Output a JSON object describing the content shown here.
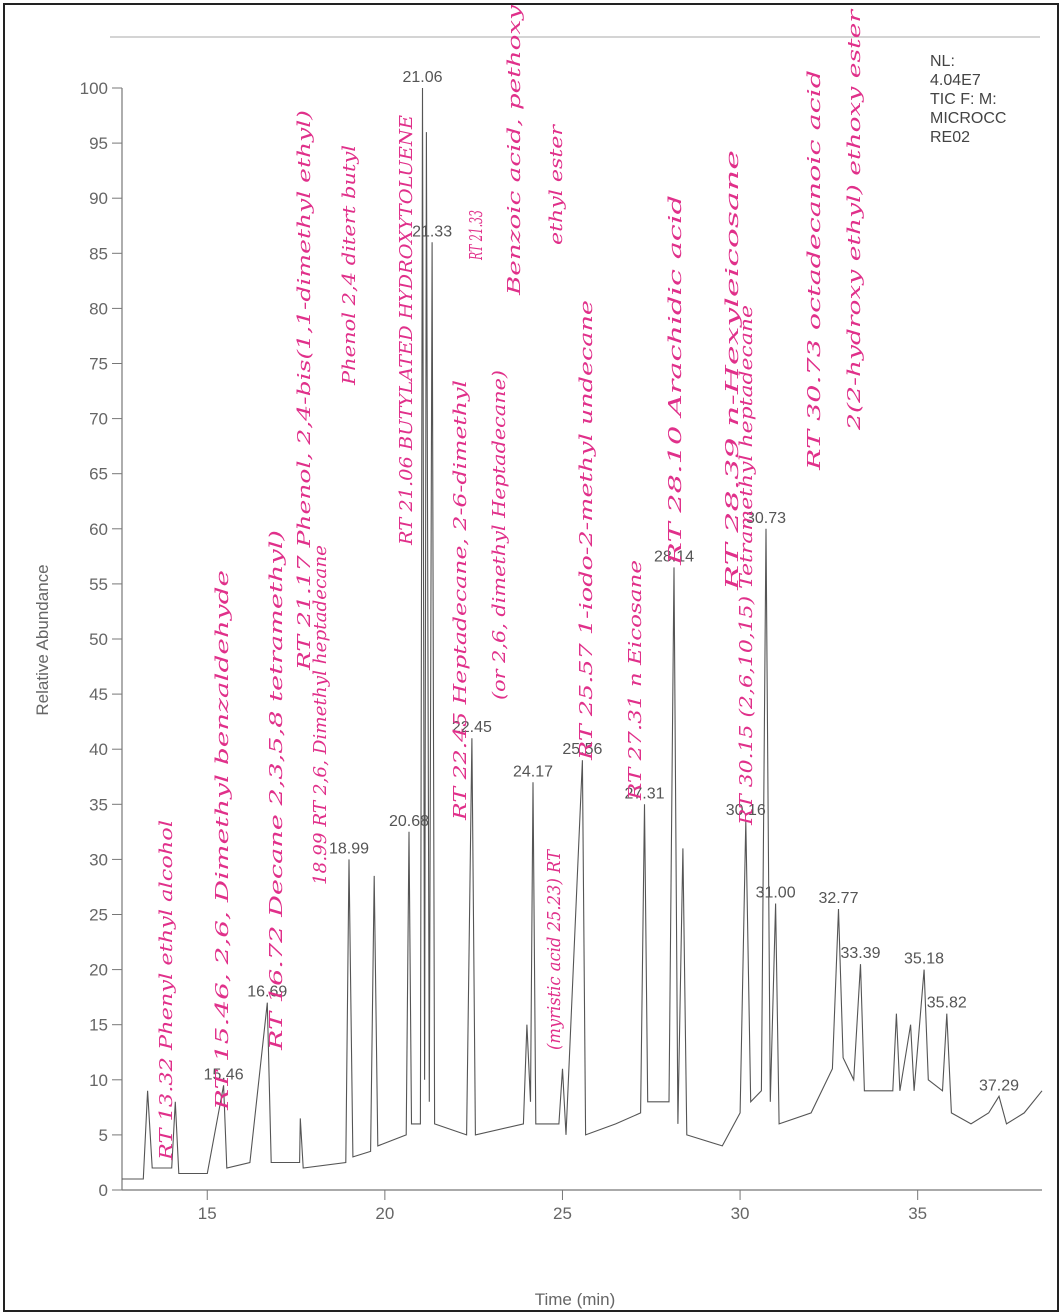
{
  "chart_data": {
    "type": "line",
    "x_label": "Time (min)",
    "y_label": "Relative Abundance",
    "info": [
      "NL:",
      "4.04E7",
      "TIC F:  M:",
      "MICROCC",
      "RE02"
    ],
    "color": "#555555",
    "xlim": [
      12.6,
      38.5
    ],
    "ylim": [
      0,
      100
    ],
    "xticks": [
      15,
      20,
      25,
      30,
      35
    ],
    "yticks": [
      0,
      5,
      10,
      15,
      20,
      25,
      30,
      35,
      40,
      45,
      50,
      55,
      60,
      65,
      70,
      75,
      80,
      85,
      90,
      95,
      100
    ],
    "x": [
      12.6,
      13.2,
      13.32,
      13.45,
      14.0,
      14.1,
      14.2,
      15.0,
      15.46,
      15.55,
      16.2,
      16.69,
      16.8,
      17.6,
      17.62,
      17.7,
      18.9,
      18.99,
      19.1,
      19.6,
      19.7,
      19.8,
      20.6,
      20.68,
      20.75,
      21.0,
      21.06,
      21.12,
      21.17,
      21.25,
      21.33,
      21.4,
      22.3,
      22.45,
      22.55,
      23.9,
      24.0,
      24.1,
      24.17,
      24.25,
      24.9,
      25.0,
      25.1,
      25.56,
      25.65,
      26.5,
      27.2,
      27.31,
      27.4,
      28.0,
      28.14,
      28.25,
      28.39,
      28.5,
      29.5,
      30.0,
      30.16,
      30.3,
      30.6,
      30.73,
      30.85,
      31.0,
      31.1,
      32.0,
      32.6,
      32.77,
      32.9,
      33.2,
      33.39,
      33.5,
      34.3,
      34.4,
      34.5,
      34.8,
      34.9,
      35.18,
      35.3,
      35.7,
      35.82,
      35.95,
      36.5,
      37.0,
      37.29,
      37.5,
      38.0,
      38.5
    ],
    "values": [
      1,
      1,
      9,
      2,
      2,
      8,
      1.5,
      1.5,
      9.5,
      2,
      2.5,
      17,
      2.5,
      2.5,
      6.5,
      2,
      2.5,
      30,
      3,
      3.5,
      28.5,
      4,
      5,
      32.5,
      6,
      6,
      100,
      10,
      96,
      8,
      86,
      6,
      5,
      41,
      5,
      6,
      15,
      8,
      37,
      6,
      6,
      11,
      5,
      39,
      5,
      6,
      7,
      35,
      8,
      8,
      56.5,
      6,
      31,
      5,
      4,
      7,
      33.5,
      8,
      9,
      60,
      8,
      26,
      6,
      7,
      11,
      25.5,
      12,
      10,
      20.5,
      9,
      9,
      16,
      9,
      15,
      9,
      20,
      10,
      9,
      16,
      7,
      6,
      7,
      8.5,
      6,
      7,
      9
    ],
    "peaks": {
      "x": [
        15.46,
        16.69,
        18.99,
        20.68,
        21.06,
        21.33,
        22.45,
        24.17,
        25.56,
        27.31,
        28.14,
        30.16,
        30.73,
        31.0,
        32.77,
        33.39,
        35.18,
        35.82,
        37.29
      ],
      "x_labels": [
        "15.46",
        "16.69",
        "18.99",
        "20.68",
        "21.06",
        "21.33",
        "22.45",
        "24.17",
        "25.56",
        "27.31",
        "28.14",
        "30.16",
        "30.73",
        "31.00",
        "32.77",
        "33.39",
        "35.18",
        "35.82",
        "37.29"
      ],
      "values": [
        9.5,
        17,
        30,
        32.5,
        100,
        86,
        41,
        37,
        39,
        35,
        56.5,
        33.5,
        60,
        26,
        25.5,
        20.5,
        20,
        16,
        8.5
      ]
    },
    "annotations": [
      "RT 13.32 Phenyl ethyl alcohol",
      "RT 15.46, 2,6, Dimethyl benzaldehyde",
      "RT 16.72 Decane 2,3,5,8 tetramethyl)",
      "18.99 RT 2,6, Dimethyl heptadecane",
      "RT 21.17 Phenol, 2,4-bis(1,1-dimethyl ethyl)",
      "Phenol 2,4 ditert butyl",
      "RT 21.06 BUTYLATED HYDROXYTOLUENE",
      "RT 21.33",
      "Benzoic acid, pethoxy",
      "ethyl ester",
      "RT 22.45 Heptadecane, 2-6-dimethyl",
      "(or 2,6, dimethyl Heptadecane)",
      "(myristic acid 25.23) RT",
      "RT 25.57 1-iodo-2-methyl undecane",
      "RT 27.31 n Eicosane",
      "RT 28.10 Arachidic acid",
      "RT 28.39 n-Hexyleicosane",
      "RT 30.15 (2,6,10,15) Tetramethyl heptadecane",
      "RT 30.73 octadecanoic acid",
      "2(2-hydroxy ethyl) ethoxy ester"
    ]
  }
}
